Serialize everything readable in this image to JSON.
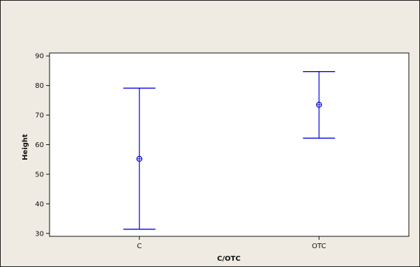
{
  "chart_data": {
    "type": "interval",
    "xlabel": "C/OTC",
    "ylabel": "Height",
    "categories": [
      "C",
      "OTC"
    ],
    "means": [
      55.2,
      73.5
    ],
    "lower": [
      31.4,
      62.2
    ],
    "upper": [
      79.1,
      84.7
    ],
    "ylim": [
      29,
      91
    ],
    "yticks": [
      30,
      40,
      50,
      60,
      70,
      80,
      90
    ],
    "grid": false,
    "colors": {
      "interval": "#0000e0",
      "frame_background": "#efebe2",
      "plot_background": "#ffffff",
      "axis": "#111111"
    }
  }
}
